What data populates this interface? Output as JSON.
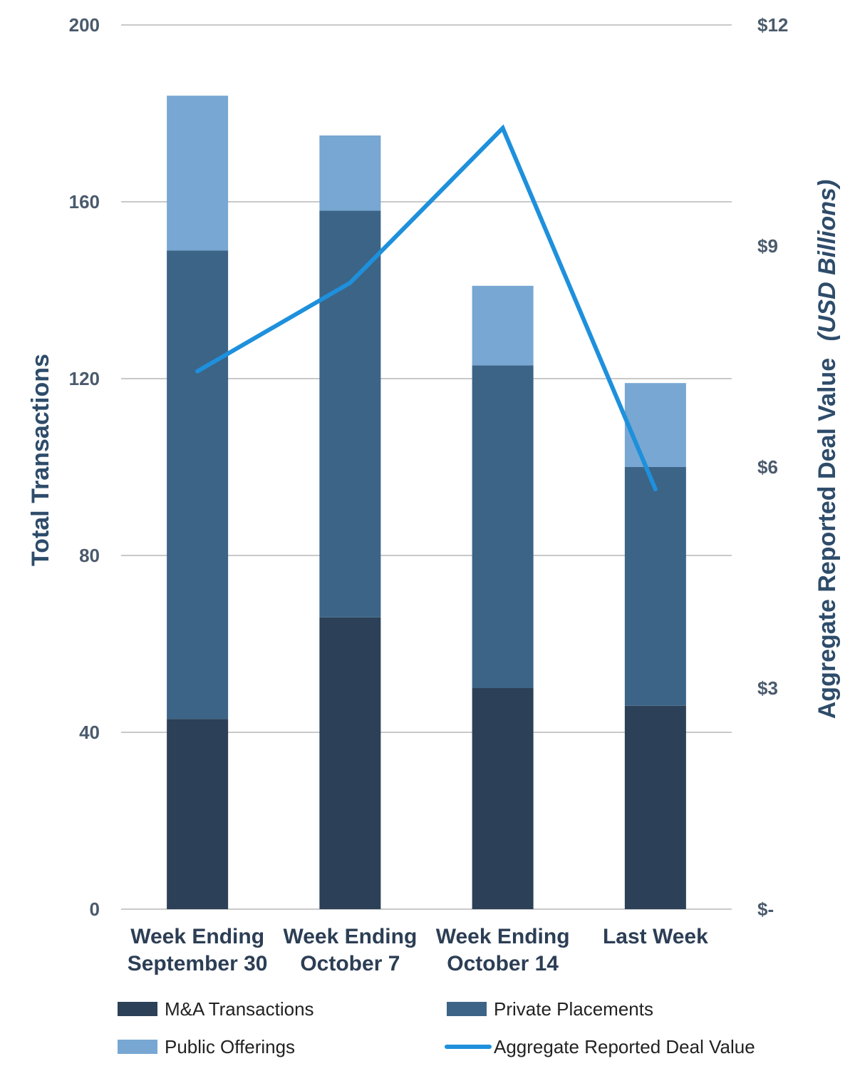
{
  "chart_data": {
    "type": "bar",
    "stacked": true,
    "categories": [
      [
        "Week Ending",
        "September 30"
      ],
      [
        "Week Ending",
        "October 7"
      ],
      [
        "Week Ending",
        "October 14"
      ],
      [
        "Last Week"
      ]
    ],
    "series": [
      {
        "name": "M&A Transactions",
        "type": "bar",
        "axis": "left",
        "color": "#2c4057",
        "values": [
          43,
          66,
          50,
          46
        ]
      },
      {
        "name": "Private Placements",
        "type": "bar",
        "axis": "left",
        "color": "#3c6486",
        "values": [
          106,
          92,
          73,
          54
        ]
      },
      {
        "name": "Public Offerings",
        "type": "bar",
        "axis": "left",
        "color": "#77a7d2",
        "values": [
          35,
          17,
          18,
          19
        ]
      },
      {
        "name": "Aggregate Reported Deal Value",
        "type": "line",
        "axis": "right",
        "color": "#1e90dc",
        "values": [
          7.3,
          8.5,
          10.6,
          5.7
        ]
      }
    ],
    "ylabel_left": "Total Transactions",
    "ylabel_right_main": "Aggregate Reported Deal Value",
    "ylabel_right_italic": "(USD Billions)",
    "ylim_left": [
      0,
      200
    ],
    "ylim_right": [
      0,
      12
    ],
    "yticks_left": [
      "0",
      "40",
      "80",
      "120",
      "160",
      "200"
    ],
    "yticks_right": [
      "$-",
      "$3",
      "$6",
      "$9",
      "$12"
    ],
    "grid": true,
    "legend_position": "bottom"
  }
}
